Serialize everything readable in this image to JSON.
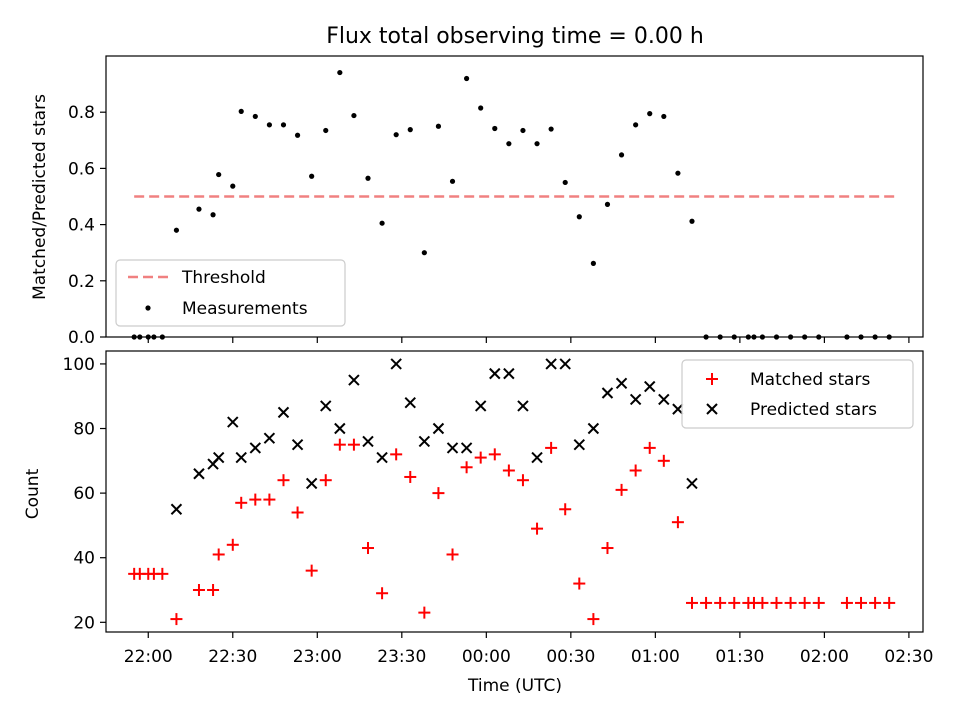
{
  "chart_data": [
    {
      "type": "scatter",
      "title": "Flux total observing time = 0.00 h",
      "xlabel": "",
      "ylabel": "Matched/Predicted stars",
      "xlim": [
        "21:45",
        "02:35"
      ],
      "ylim": [
        0,
        1.0
      ],
      "yticks": [
        0.0,
        0.2,
        0.4,
        0.6,
        0.8
      ],
      "ytick_labels": [
        "0.0",
        "0.2",
        "0.4",
        "0.6",
        "0.8"
      ],
      "grid": false,
      "legend_position": "lower-left",
      "threshold": {
        "name": "Threshold",
        "y": 0.5,
        "x": [
          "21:55",
          "02:25"
        ],
        "color": "#f08080",
        "style": "dashed"
      },
      "series": [
        {
          "name": "Measurements",
          "marker": "dot",
          "color": "#000000",
          "x": [
            "21:55",
            "21:57",
            "21:60",
            "22:02",
            "22:05",
            "22:10",
            "22:18",
            "22:23",
            "22:25",
            "22:30",
            "22:33",
            "22:38",
            "22:43",
            "22:48",
            "22:53",
            "22:58",
            "23:03",
            "23:08",
            "23:13",
            "23:18",
            "23:23",
            "23:28",
            "23:33",
            "23:38",
            "23:43",
            "23:48",
            "23:53",
            "23:58",
            "24:03",
            "24:08",
            "24:13",
            "24:18",
            "24:23",
            "24:28",
            "24:33",
            "24:38",
            "24:43",
            "24:48",
            "24:53",
            "24:58",
            "25:03",
            "25:08",
            "25:13",
            "25:18",
            "25:23",
            "25:28",
            "25:33",
            "25:35",
            "25:38",
            "25:43",
            "25:48",
            "25:53",
            "25:58",
            "26:08",
            "26:13",
            "26:18",
            "26:23"
          ],
          "y": [
            0,
            0,
            0,
            0,
            0,
            0.38,
            0.455,
            0.435,
            0.578,
            0.537,
            0.803,
            0.785,
            0.755,
            0.755,
            0.718,
            0.572,
            0.735,
            0.941,
            0.788,
            0.565,
            0.405,
            0.72,
            0.738,
            0.3,
            0.75,
            0.554,
            0.92,
            0.815,
            0.742,
            0.688,
            0.735,
            0.688,
            0.74,
            0.55,
            0.428,
            0.262,
            0.472,
            0.648,
            0.755,
            0.795,
            0.785,
            0.583,
            0.412,
            0,
            0,
            0,
            0,
            0,
            0,
            0,
            0,
            0,
            0,
            0,
            0,
            0,
            0
          ]
        }
      ]
    },
    {
      "type": "scatter",
      "title": "",
      "xlabel": "Time (UTC)",
      "ylabel": "Count",
      "xlim": [
        "21:45",
        "02:35"
      ],
      "ylim": [
        17,
        104
      ],
      "yticks": [
        20,
        40,
        60,
        80,
        100
      ],
      "ytick_labels": [
        "20",
        "40",
        "60",
        "80",
        "100"
      ],
      "xticks": [
        "22:00",
        "22:30",
        "23:00",
        "23:30",
        "00:00",
        "00:30",
        "01:00",
        "01:30",
        "02:00",
        "02:30"
      ],
      "xtick_labels": [
        "22:00",
        "22:30",
        "23:00",
        "23:30",
        "00:00",
        "00:30",
        "01:00",
        "01:30",
        "02:00",
        "02:30"
      ],
      "grid": false,
      "legend_position": "top-right",
      "series": [
        {
          "name": "Matched stars",
          "marker": "plus",
          "color": "#ff0000",
          "x": [
            "21:55",
            "21:57",
            "21:60",
            "22:02",
            "22:05",
            "22:10",
            "22:18",
            "22:23",
            "22:25",
            "22:30",
            "22:33",
            "22:38",
            "22:43",
            "22:48",
            "22:53",
            "22:58",
            "23:03",
            "23:08",
            "23:13",
            "23:18",
            "23:23",
            "23:28",
            "23:33",
            "23:38",
            "23:43",
            "23:48",
            "23:53",
            "23:58",
            "24:03",
            "24:08",
            "24:13",
            "24:18",
            "24:23",
            "24:28",
            "24:33",
            "24:38",
            "24:43",
            "24:48",
            "24:53",
            "24:58",
            "25:03",
            "25:08",
            "25:13",
            "25:18",
            "25:23",
            "25:28",
            "25:33",
            "25:35",
            "25:38",
            "25:43",
            "25:48",
            "25:53",
            "25:58",
            "26:08",
            "26:13",
            "26:18",
            "26:23"
          ],
          "y": [
            35,
            35,
            35,
            35,
            35,
            21,
            30,
            30,
            41,
            44,
            57,
            58,
            58,
            64,
            54,
            36,
            64,
            75,
            75,
            43,
            29,
            72,
            65,
            23,
            60,
            41,
            68,
            71,
            72,
            67,
            64,
            49,
            74,
            55,
            32,
            21,
            43,
            61,
            67,
            74,
            70,
            51,
            26,
            26,
            26,
            26,
            26,
            26,
            26,
            26,
            26,
            26,
            26,
            26,
            26,
            26,
            26
          ]
        },
        {
          "name": "Predicted stars",
          "marker": "x",
          "color": "#000000",
          "x": [
            "21:55",
            "21:57",
            "21:60",
            "22:02",
            "22:05",
            "22:10",
            "22:18",
            "22:23",
            "22:25",
            "22:30",
            "22:33",
            "22:38",
            "22:43",
            "22:48",
            "22:53",
            "22:58",
            "23:03",
            "23:08",
            "23:13",
            "23:18",
            "23:23",
            "23:28",
            "23:33",
            "23:38",
            "23:43",
            "23:48",
            "23:53",
            "23:58",
            "24:03",
            "24:08",
            "24:13",
            "24:18",
            "24:23",
            "24:28",
            "24:33",
            "24:38",
            "24:43",
            "24:48",
            "24:53",
            "24:58",
            "25:03",
            "25:08",
            "25:13",
            "25:18",
            "25:23",
            "25:28",
            "25:33",
            "25:35",
            "25:38",
            "25:43",
            "25:48",
            "25:53",
            "25:58",
            "26:08",
            "26:13",
            "26:18",
            "26:23"
          ],
          "y": [
            null,
            null,
            null,
            null,
            null,
            55,
            66,
            69,
            71,
            82,
            71,
            74,
            77,
            85,
            75,
            63,
            87,
            80,
            95,
            76,
            71,
            100,
            88,
            76,
            80,
            74,
            74,
            87,
            97,
            97,
            87,
            71,
            100,
            100,
            75,
            80,
            91,
            94,
            89,
            93,
            89,
            86,
            63,
            null,
            null,
            null,
            null,
            null,
            null,
            null,
            null,
            null,
            null,
            null,
            null,
            null,
            null
          ]
        }
      ]
    }
  ]
}
